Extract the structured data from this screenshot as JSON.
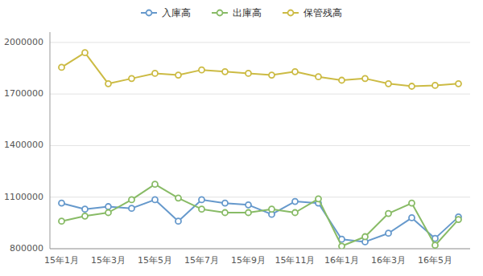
{
  "chart_data": {
    "type": "line",
    "categories": [
      "15年1月",
      null,
      "15年3月",
      null,
      "15年5月",
      null,
      "15年7月",
      null,
      "15年9月",
      null,
      "15年11月",
      null,
      "16年1月",
      null,
      "16年3月",
      null,
      "16年5月",
      null
    ],
    "series": [
      {
        "name": "入庫高",
        "color": "#6699cc",
        "marker": "circle",
        "values": [
          1065000,
          1030000,
          1045000,
          1035000,
          1085000,
          960000,
          1085000,
          1065000,
          1055000,
          1000000,
          1075000,
          1065000,
          855000,
          840000,
          890000,
          980000,
          860000,
          985000
        ]
      },
      {
        "name": "出庫高",
        "color": "#88bb66",
        "marker": "circle",
        "values": [
          960000,
          990000,
          1010000,
          1085000,
          1175000,
          1095000,
          1030000,
          1010000,
          1010000,
          1030000,
          1010000,
          1090000,
          815000,
          870000,
          1005000,
          1065000,
          820000,
          970000
        ]
      },
      {
        "name": "保管残高",
        "color": "#ccbb44",
        "marker": "circle",
        "values": [
          1855000,
          1940000,
          1760000,
          1790000,
          1820000,
          1810000,
          1840000,
          1830000,
          1820000,
          1810000,
          1830000,
          1800000,
          1780000,
          1790000,
          1760000,
          1745000,
          1750000,
          1760000
        ]
      }
    ],
    "ylim": [
      800000,
      2060000
    ],
    "yticks": [
      800000,
      1100000,
      1400000,
      1700000,
      2000000
    ],
    "grid": true,
    "legend": "top"
  }
}
